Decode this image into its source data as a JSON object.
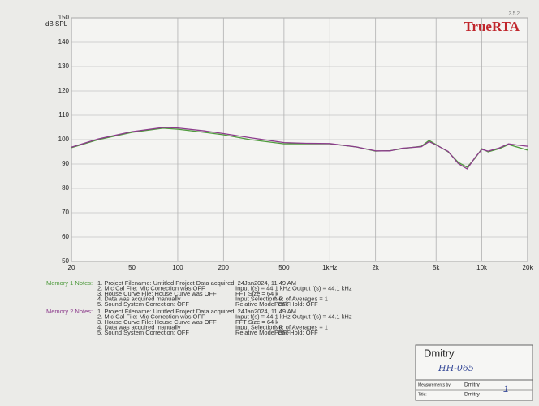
{
  "chart_data": {
    "type": "line",
    "title": "TrueRTA",
    "version": "3.5.2",
    "ylabel": "dB SPL",
    "log_x": true,
    "grid": true,
    "x": [
      20,
      30,
      50,
      80,
      100,
      150,
      200,
      300,
      500,
      700,
      1000,
      1500,
      2000,
      2500,
      3000,
      4000,
      4500,
      5000,
      6000,
      7000,
      8000,
      9000,
      10000,
      11000,
      13000,
      15000,
      17000,
      20000
    ],
    "series": [
      {
        "color": "#4e9a3c",
        "values": [
          96.7,
          100,
          103,
          104.7,
          104.3,
          103,
          102,
          100,
          98.3,
          98.3,
          98.3,
          97,
          95.3,
          95.5,
          96.3,
          97.3,
          99.7,
          98,
          95,
          90.7,
          88.7,
          92.3,
          96.3,
          95,
          96.3,
          98,
          97,
          95.7
        ]
      },
      {
        "color": "#8c3c8c",
        "values": [
          96.9,
          100.3,
          103.3,
          105,
          104.8,
          103.6,
          102.5,
          100.8,
          98.8,
          98.5,
          98.4,
          97,
          95.4,
          95.4,
          96.5,
          97.1,
          99.2,
          97.8,
          95.2,
          90.2,
          88,
          92.6,
          96,
          95.3,
          96.6,
          98.3,
          97.8,
          97.3
        ]
      }
    ],
    "xlim": [
      20,
      20000
    ],
    "ylim": [
      50,
      150
    ],
    "xticks": [
      20,
      50,
      100,
      200,
      500,
      {
        "value": 1000,
        "label": "1kHz"
      },
      {
        "value": 2000,
        "label": "2k"
      },
      {
        "value": 5000,
        "label": "5k"
      },
      {
        "value": 10000,
        "label": "10k"
      },
      {
        "value": 20000,
        "label": "20k"
      }
    ],
    "yticks": [
      50,
      60,
      70,
      80,
      90,
      100,
      110,
      120,
      130,
      140,
      150
    ]
  },
  "notes": [
    {
      "title": "Memory 1 Notes:",
      "lines": [
        [
          "1. Project Filename: Untitled Project  Data acquired: 24Jan2024, 11:49 AM"
        ],
        [
          "2. Mic Cal File: Mic Correction was OFF",
          "Input f(s) = 44.1 kHz",
          "Output f(s) = 44.1 kHz"
        ],
        [
          "3. House Curve File: House Curve was OFF",
          "FFT Size = 64 k"
        ],
        [
          "4. Data was acquired manually",
          "Input Selection: R",
          "No. of Averages = 1"
        ],
        [
          "5. Sound System Correction: OFF",
          "Relative Mode: OFF",
          "Peak Hold: OFF"
        ]
      ]
    },
    {
      "title": "Memory 2 Notes:",
      "lines": [
        [
          "1. Project Filename: Untitled Project  Data acquired: 24Jan2024, 11:49 AM"
        ],
        [
          "2. Mic Cal File: Mic Correction was OFF",
          "Input f(s) = 44.1 kHz",
          "Output f(s) = 44.1 kHz"
        ],
        [
          "3. House Curve File: House Curve was OFF",
          "FFT Size = 64 k"
        ],
        [
          "4. Data was acquired manually",
          "Input Selection: R",
          "No. of Averages = 1"
        ],
        [
          "5. Sound System Correction: OFF",
          "Relative Mode: OFF",
          "Peak Hold: OFF"
        ]
      ]
    }
  ],
  "signature": {
    "name": "Dmitry",
    "handwritten": "HH-065",
    "measured_label": "Measurements by:",
    "measured_by": "Dmitry",
    "title_label": "Title:",
    "title": "Dmitry",
    "mark": "1"
  }
}
